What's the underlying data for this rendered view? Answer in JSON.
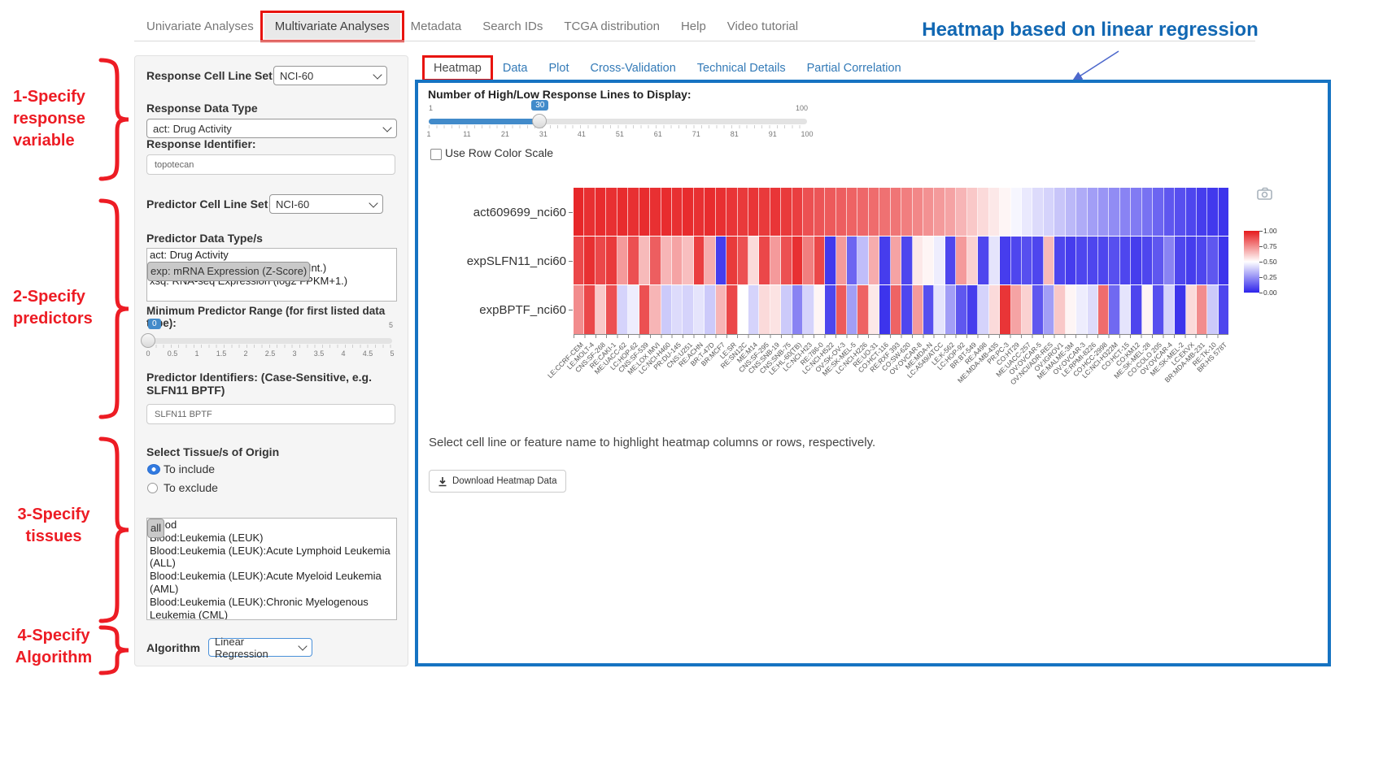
{
  "colors": {
    "panel_border_blue": "#1673c2",
    "link_blue": "#337ab7",
    "annotation_red": "#ed1c24",
    "heading_blue": "#1268b3",
    "slider_blue": "#428bca",
    "heat_high_red": "#e61a1c",
    "heat_low_blue": "#2d23eb"
  },
  "navbar": {
    "items": [
      {
        "label": "Univariate Analyses",
        "active": false,
        "boxed": false
      },
      {
        "label": "Multivariate Analyses",
        "active": true,
        "boxed": true
      },
      {
        "label": "Metadata",
        "active": false,
        "boxed": false
      },
      {
        "label": "Search IDs",
        "active": false,
        "boxed": false
      },
      {
        "label": "TCGA distribution",
        "active": false,
        "boxed": false
      },
      {
        "label": "Help",
        "active": false,
        "boxed": false
      },
      {
        "label": "Video tutorial",
        "active": false,
        "boxed": false
      }
    ]
  },
  "annotation": {
    "heading": "Heatmap based on linear regression",
    "steps": [
      {
        "lines": [
          "1-Specify",
          "response",
          "variable"
        ]
      },
      {
        "lines": [
          "2-Specify",
          "predictors"
        ]
      },
      {
        "lines": [
          "3-Specify",
          "tissues"
        ]
      },
      {
        "lines": [
          "4-Specify",
          "Algorithm"
        ]
      }
    ]
  },
  "sidebar": {
    "response_cell_line_set": {
      "label": "Response Cell Line Set",
      "value": "NCI-60"
    },
    "response_data_type": {
      "label": "Response Data Type",
      "value": "act: Drug Activity"
    },
    "response_identifier": {
      "label": "Response Identifier:",
      "value": "topotecan"
    },
    "predictor_cell_line_set": {
      "label": "Predictor Cell Line Set",
      "value": "NCI-60"
    },
    "predictor_data_types": {
      "label": "Predictor Data Type/s",
      "options": [
        "act: Drug Activity",
        "exp: mRNA Expression (Z-Score)",
        "xai: mRNA Expression (Avg. log2 Int.)",
        "xsq: RNA-seq Expression (log2 FPKM+1.)"
      ],
      "selected_index": 1
    },
    "min_predictor_range": {
      "label": "Minimum Predictor Range (for first listed data type):",
      "value": "0",
      "max_label": "5",
      "ticks": [
        "0",
        "0.5",
        "1",
        "1.5",
        "2",
        "2.5",
        "3",
        "3.5",
        "4",
        "4.5",
        "5"
      ]
    },
    "predictor_identifiers": {
      "label": "Predictor Identifiers: (Case-Sensitive, e.g. SLFN11 BPTF)",
      "value": "SLFN11 BPTF"
    },
    "tissue": {
      "label": "Select Tissue/s of Origin",
      "radios": [
        {
          "label": "To include",
          "checked": true
        },
        {
          "label": "To exclude",
          "checked": false
        }
      ],
      "options": [
        "all",
        "Blood",
        "Blood:Leukemia (LEUK)",
        "Blood:Leukemia (LEUK):Acute Lymphoid Leukemia (ALL)",
        "Blood:Leukemia (LEUK):Acute Myeloid Leukemia (AML)",
        "Blood:Leukemia (LEUK):Chronic Myelogenous Leukemia (CML)"
      ],
      "selected_index": 0
    },
    "algorithm": {
      "label": "Algorithm",
      "value": "Linear Regression"
    }
  },
  "tabs": [
    {
      "label": "Heatmap",
      "active": true
    },
    {
      "label": "Data",
      "active": false
    },
    {
      "label": "Plot",
      "active": false
    },
    {
      "label": "Cross-Validation",
      "active": false
    },
    {
      "label": "Technical Details",
      "active": false
    },
    {
      "label": "Partial Correlation",
      "active": false
    }
  ],
  "panel": {
    "slider": {
      "label": "Number of High/Low Response Lines to Display:",
      "min": 1,
      "max": 100,
      "value": 30,
      "min_label": "1",
      "max_label": "100",
      "value_label": "30",
      "ticks": [
        "1",
        "11",
        "21",
        "31",
        "41",
        "51",
        "61",
        "71",
        "81",
        "91",
        "100"
      ]
    },
    "row_scale_checkbox": {
      "label": "Use Row Color Scale",
      "checked": false
    },
    "help_text": "Select cell line or feature name to highlight heatmap columns or rows, respectively.",
    "download_button": "Download Heatmap Data",
    "legend_ticks": [
      "1.00",
      "0.75",
      "0.50",
      "0.25",
      "0.00"
    ],
    "camera_icon": "camera-icon"
  },
  "chart_data": {
    "type": "heatmap",
    "title": "",
    "legend_position": "right",
    "value_range": [
      0,
      1
    ],
    "rows": [
      "act609699_nci60",
      "expSLFN11_nci60",
      "expBPTF_nci60"
    ],
    "columns": [
      "LE:CCRF-CEM",
      "LE:MOLT-4",
      "CNS:SF-268",
      "RE:CAKI-1",
      "ME:UACC-62",
      "LC:HOP-62",
      "CNS:SF-539",
      "ME:LOX IMVI",
      "LC:NCI-H460",
      "PR:DU-145",
      "CNS:U251",
      "RE:ACHN",
      "BR:T-47D",
      "BR:MCF7",
      "LE:SR",
      "RE:SN12C",
      "ME:M14",
      "CNS:SF-295",
      "CNS:SNB-19",
      "CNS:SNB-75",
      "LE:HL-60(TB)",
      "LC:NCI-H23",
      "RE:786-0",
      "LC:NCI-H522",
      "OV:SK-OV-3",
      "ME:SK-MEL-5",
      "LC:NCI-H226",
      "RE:UO-31",
      "CO:HCT-116",
      "RE:RXF 393",
      "CO:SW-620",
      "OV:OVCAR-8",
      "ME:MDA-N",
      "LC:A549/ATCC",
      "LE:K-562",
      "LC:HOP-92",
      "BR:BT-549",
      "RE:A498",
      "ME:MDA-MB-435",
      "PR:PC-3",
      "CO:HT29",
      "ME:UACC-257",
      "OV:OVCAR-5",
      "OV:NCI/ADR-RES",
      "OV:IGROV1",
      "ME:MALME-3M",
      "OV:OVCAR-3",
      "LE:RPMI-8226",
      "CO:HCC-2998",
      "LC:NCI-H322M",
      "CO:HCT-15",
      "CO:KM12",
      "ME:SK-MEL-28",
      "CO:COLO 205",
      "OV:OVCAR-4",
      "ME:SK-MEL-2",
      "LC:EKVX",
      "BR:MDA-MB-231",
      "RE:TK-10",
      "BR:HS 578T"
    ],
    "values": [
      [
        0.97,
        0.95,
        0.96,
        0.95,
        0.96,
        0.95,
        0.96,
        0.95,
        0.96,
        0.95,
        0.96,
        0.95,
        0.96,
        0.95,
        0.94,
        0.93,
        0.94,
        0.93,
        0.94,
        0.93,
        0.92,
        0.88,
        0.87,
        0.86,
        0.85,
        0.84,
        0.83,
        0.82,
        0.81,
        0.8,
        0.78,
        0.76,
        0.74,
        0.72,
        0.7,
        0.66,
        0.62,
        0.58,
        0.55,
        0.52,
        0.48,
        0.45,
        0.42,
        0.4,
        0.37,
        0.34,
        0.31,
        0.28,
        0.26,
        0.24,
        0.22,
        0.2,
        0.18,
        0.15,
        0.12,
        0.1,
        0.08,
        0.06,
        0.05,
        0.04
      ],
      [
        0.9,
        0.95,
        0.9,
        0.93,
        0.72,
        0.88,
        0.65,
        0.85,
        0.66,
        0.7,
        0.64,
        0.92,
        0.68,
        0.06,
        0.93,
        0.88,
        0.58,
        0.9,
        0.72,
        0.88,
        0.95,
        0.78,
        0.9,
        0.05,
        0.72,
        0.15,
        0.35,
        0.68,
        0.06,
        0.7,
        0.08,
        0.55,
        0.52,
        0.46,
        0.08,
        0.72,
        0.6,
        0.08,
        0.44,
        0.06,
        0.08,
        0.1,
        0.08,
        0.65,
        0.08,
        0.06,
        0.08,
        0.08,
        0.08,
        0.1,
        0.08,
        0.06,
        0.08,
        0.12,
        0.22,
        0.08,
        0.06,
        0.08,
        0.12,
        0.04
      ],
      [
        0.75,
        0.9,
        0.62,
        0.88,
        0.4,
        0.46,
        0.88,
        0.66,
        0.38,
        0.42,
        0.4,
        0.44,
        0.38,
        0.66,
        0.9,
        0.5,
        0.4,
        0.58,
        0.56,
        0.38,
        0.22,
        0.4,
        0.52,
        0.08,
        0.86,
        0.28,
        0.84,
        0.55,
        0.04,
        0.84,
        0.08,
        0.72,
        0.1,
        0.44,
        0.28,
        0.12,
        0.06,
        0.4,
        0.58,
        0.94,
        0.7,
        0.6,
        0.12,
        0.28,
        0.62,
        0.52,
        0.46,
        0.42,
        0.82,
        0.16,
        0.44,
        0.08,
        0.52,
        0.1,
        0.4,
        0.04,
        0.58,
        0.75,
        0.38,
        0.08
      ]
    ]
  }
}
